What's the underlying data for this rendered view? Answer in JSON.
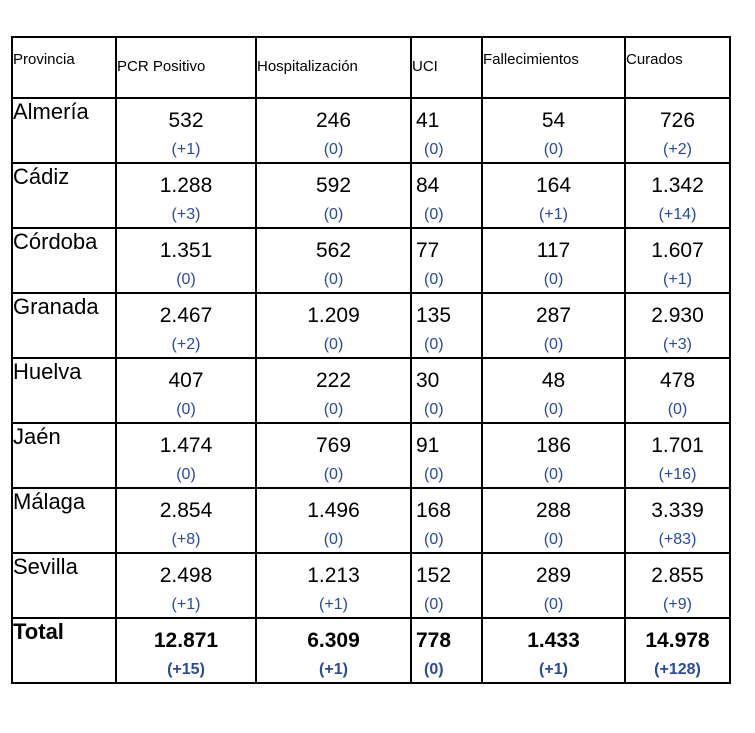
{
  "table": {
    "headers": [
      "Provincia",
      "PCR Positivo",
      "Hospitalización",
      "UCI",
      "Fallecimientos",
      "Curados"
    ],
    "rows": [
      {
        "provincia": "Almería",
        "pcr": "532",
        "pcr_d": "(+1)",
        "hosp": "246",
        "hosp_d": "(0)",
        "uci": "41",
        "uci_d": "(0)",
        "fall": "54",
        "fall_d": "(0)",
        "cur": "726",
        "cur_d": "(+2)"
      },
      {
        "provincia": "Cádiz",
        "pcr": "1.288",
        "pcr_d": "(+3)",
        "hosp": "592",
        "hosp_d": "(0)",
        "uci": "84",
        "uci_d": "(0)",
        "fall": "164",
        "fall_d": "(+1)",
        "cur": "1.342",
        "cur_d": "(+14)"
      },
      {
        "provincia": "Córdoba",
        "pcr": "1.351",
        "pcr_d": "(0)",
        "hosp": "562",
        "hosp_d": "(0)",
        "uci": "77",
        "uci_d": "(0)",
        "fall": "117",
        "fall_d": "(0)",
        "cur": "1.607",
        "cur_d": "(+1)"
      },
      {
        "provincia": "Granada",
        "pcr": "2.467",
        "pcr_d": "(+2)",
        "hosp": "1.209",
        "hosp_d": "(0)",
        "uci": "135",
        "uci_d": "(0)",
        "fall": "287",
        "fall_d": "(0)",
        "cur": "2.930",
        "cur_d": "(+3)"
      },
      {
        "provincia": "Huelva",
        "pcr": "407",
        "pcr_d": "(0)",
        "hosp": "222",
        "hosp_d": "(0)",
        "uci": "30",
        "uci_d": "(0)",
        "fall": "48",
        "fall_d": "(0)",
        "cur": "478",
        "cur_d": "(0)"
      },
      {
        "provincia": "Jaén",
        "pcr": "1.474",
        "pcr_d": "(0)",
        "hosp": "769",
        "hosp_d": "(0)",
        "uci": "91",
        "uci_d": "(0)",
        "fall": "186",
        "fall_d": "(0)",
        "cur": "1.701",
        "cur_d": "(+16)"
      },
      {
        "provincia": "Málaga",
        "pcr": "2.854",
        "pcr_d": "(+8)",
        "hosp": "1.496",
        "hosp_d": "(0)",
        "uci": "168",
        "uci_d": "(0)",
        "fall": "288",
        "fall_d": "(0)",
        "cur": "3.339",
        "cur_d": "(+83)"
      },
      {
        "provincia": "Sevilla",
        "pcr": "2.498",
        "pcr_d": "(+1)",
        "hosp": "1.213",
        "hosp_d": "(+1)",
        "uci": "152",
        "uci_d": "(0)",
        "fall": "289",
        "fall_d": "(0)",
        "cur": "2.855",
        "cur_d": "(+9)"
      }
    ],
    "total": {
      "provincia": "Total",
      "pcr": "12.871",
      "pcr_d": "(+15)",
      "hosp": "6.309",
      "hosp_d": "(+1)",
      "uci": "778",
      "uci_d": "(0)",
      "fall": "1.433",
      "fall_d": "(+1)",
      "cur": "14.978",
      "cur_d": "(+128)"
    }
  },
  "colors": {
    "delta": "#2a4a9a",
    "border": "#000000",
    "text": "#000000"
  }
}
